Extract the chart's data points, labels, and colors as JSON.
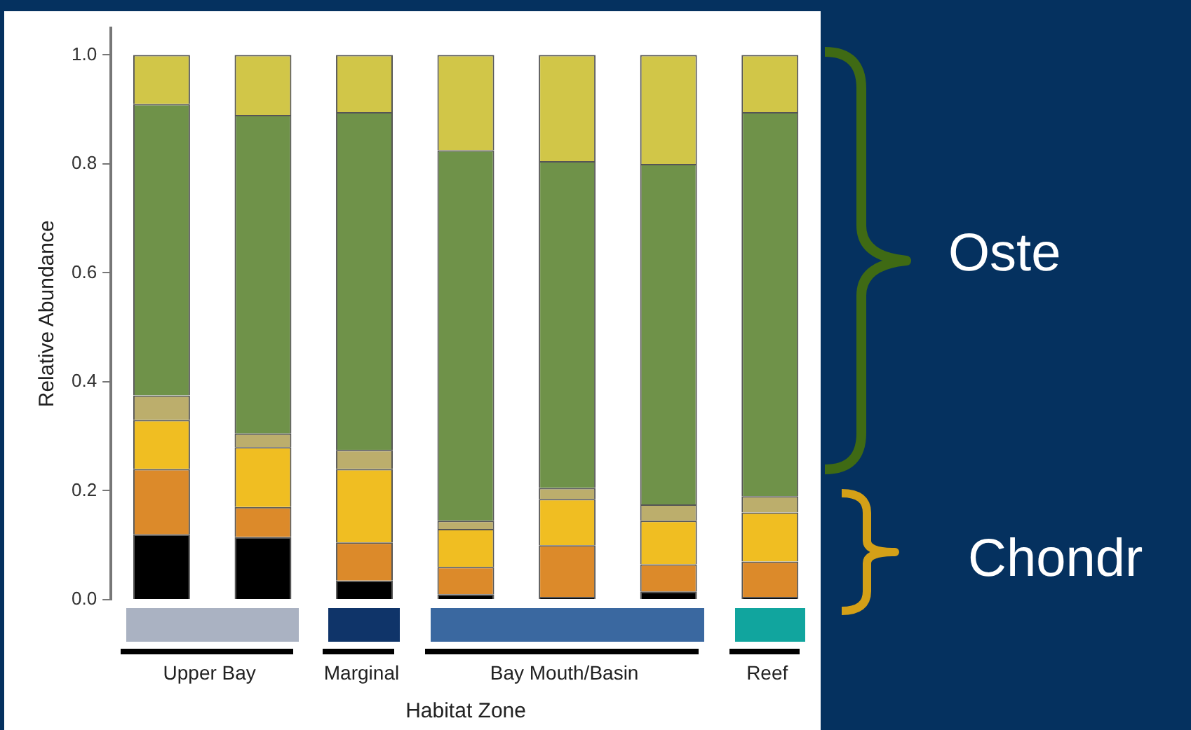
{
  "chart_data": {
    "type": "bar",
    "stacked": true,
    "xlabel": "Habitat Zone",
    "ylabel": "Relative Abundance",
    "categories": [
      null,
      null,
      null,
      null,
      null,
      null,
      null
    ],
    "series": [
      {
        "color": "#000000",
        "values": [
          0.12,
          0.115,
          0.035,
          0.01,
          0.005,
          0.015,
          0.005
        ]
      },
      {
        "color": "#dc8a2a",
        "values": [
          0.12,
          0.055,
          0.07,
          0.05,
          0.095,
          0.05,
          0.065
        ]
      },
      {
        "color": "#f0be22",
        "values": [
          0.09,
          0.11,
          0.135,
          0.07,
          0.085,
          0.08,
          0.09
        ]
      },
      {
        "color": "#bcae6c",
        "values": [
          0.045,
          0.025,
          0.035,
          0.015,
          0.02,
          0.03,
          0.03
        ]
      },
      {
        "color": "#6f9249",
        "values": [
          0.535,
          0.585,
          0.62,
          0.68,
          0.6,
          0.625,
          0.705
        ]
      },
      {
        "color": "#d1c648",
        "values": [
          0.09,
          0.11,
          0.105,
          0.175,
          0.195,
          0.2,
          0.105
        ]
      }
    ],
    "ylim": [
      0,
      1.05
    ],
    "yticks": [
      {
        "value": 0,
        "label": "0.0"
      },
      {
        "value": 0.2,
        "label": "0.2"
      },
      {
        "value": 0.4,
        "label": "0.4"
      },
      {
        "value": 0.6,
        "label": "0.6"
      },
      {
        "value": 0.8,
        "label": "0.8"
      },
      {
        "value": 1,
        "label": "1.0"
      }
    ],
    "grid": false,
    "legend": false,
    "annotations": [
      "Upper Bay",
      "Marginal",
      "Bay Mouth/Basin",
      "Reef",
      "Oste",
      "Chondr"
    ]
  }
}
